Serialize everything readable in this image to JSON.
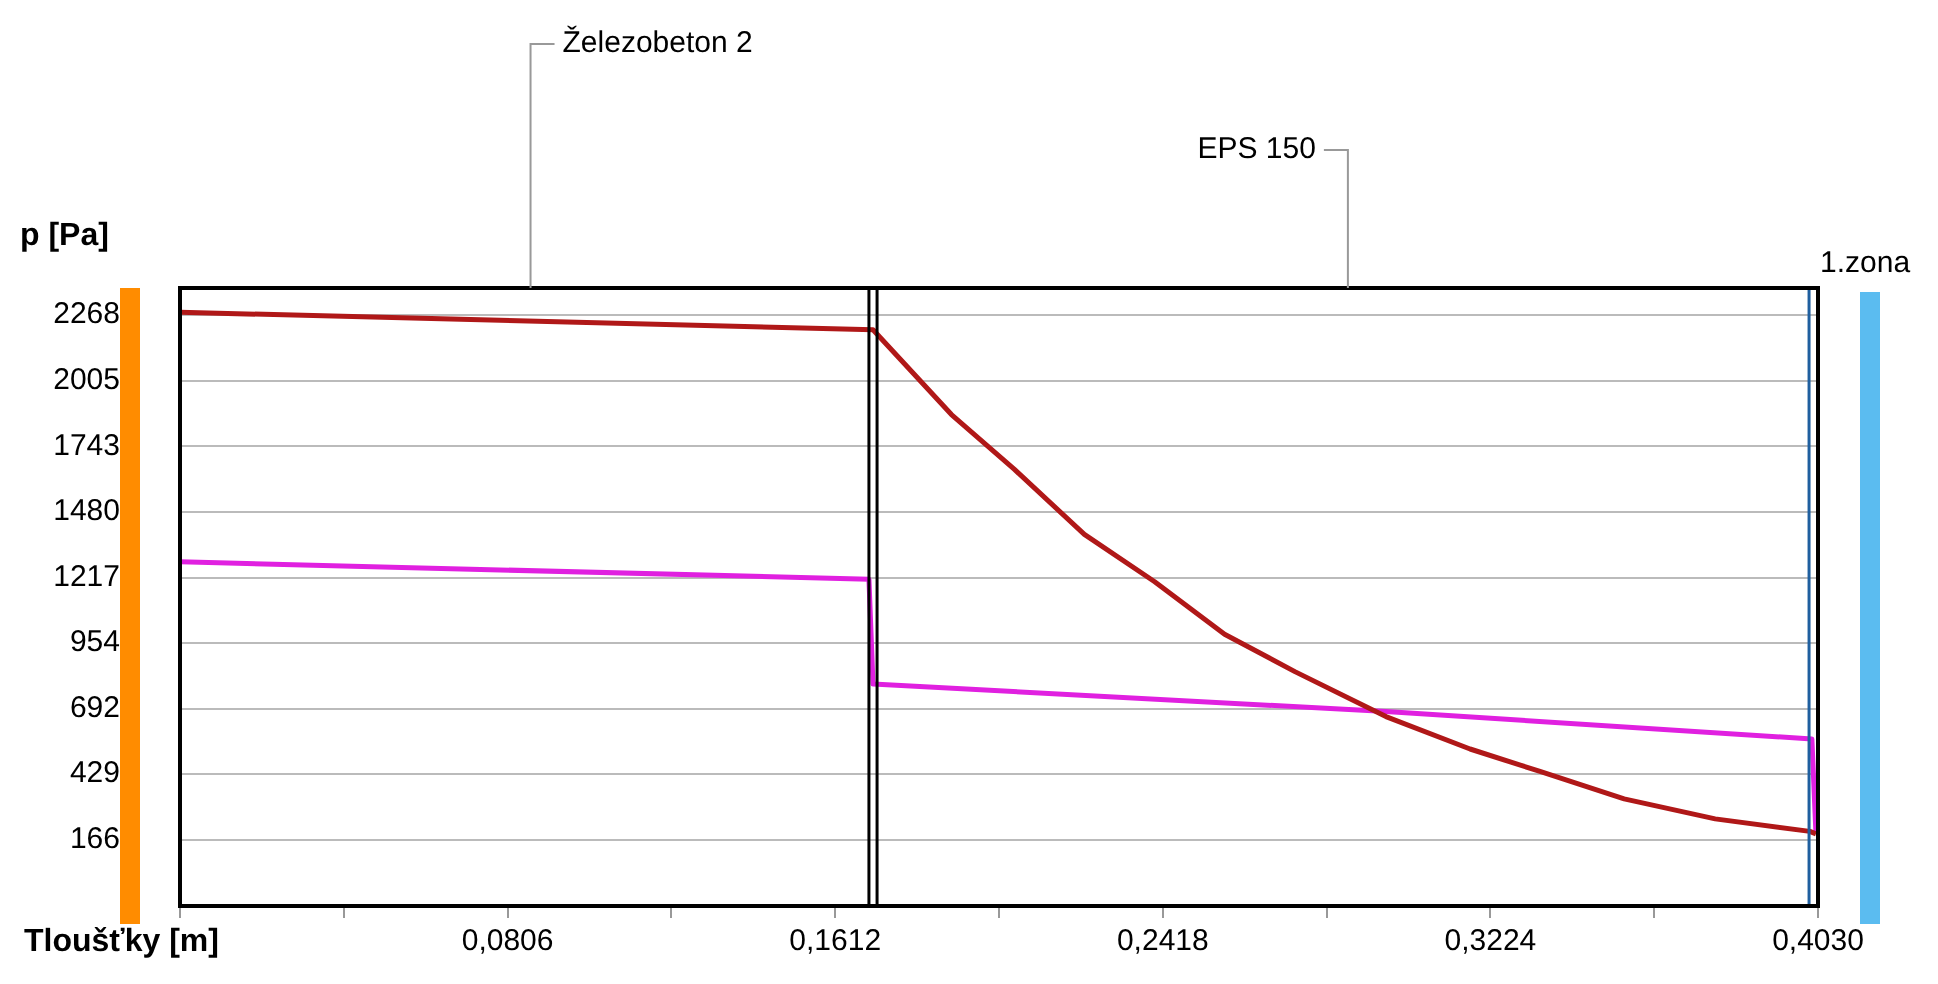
{
  "chart_data": {
    "type": "line",
    "xlabel": "Tloušťky [m]",
    "ylabel": "p [Pa]",
    "xlim": [
      0,
      0.403
    ],
    "ylim": [
      -99,
      2377
    ],
    "xticks": [
      {
        "value": 0,
        "label": null
      },
      {
        "value": 0.0403,
        "label": null
      },
      {
        "value": 0.0806,
        "label": "0,0806"
      },
      {
        "value": 0.1209,
        "label": null
      },
      {
        "value": 0.1612,
        "label": "0,1612"
      },
      {
        "value": 0.2015,
        "label": null
      },
      {
        "value": 0.2418,
        "label": "0,2418"
      },
      {
        "value": 0.2821,
        "label": null
      },
      {
        "value": 0.3224,
        "label": "0,3224"
      },
      {
        "value": 0.3627,
        "label": null
      },
      {
        "value": 0.403,
        "label": "0,4030"
      }
    ],
    "yticks": [
      166,
      429,
      692,
      954,
      1217,
      1480,
      1743,
      2005,
      2268
    ],
    "grid": "y",
    "legend": false,
    "marker": "none",
    "line_style": "solid",
    "series": [
      {
        "color": "#b01818",
        "x": [
          0,
          0.1705,
          0.1898,
          0.2053,
          0.2225,
          0.2398,
          0.257,
          0.2743,
          0.2967,
          0.3174,
          0.3346,
          0.3553,
          0.3777,
          0.401,
          0.4025
        ],
        "values": [
          2280,
          2210,
          1870,
          1650,
          1390,
          1200,
          990,
          840,
          660,
          530,
          440,
          330,
          250,
          200,
          190
        ]
      },
      {
        "color": "#e020e0",
        "x": [
          0,
          0.1695,
          0.1705,
          0.2967,
          0.4015,
          0.4025
        ],
        "values": [
          1280,
          1210,
          790,
          680,
          570,
          190
        ]
      }
    ],
    "ref_lines": [
      {
        "axis": "x",
        "value": 0.1695,
        "color": "#000000"
      },
      {
        "axis": "x",
        "value": 0.1715,
        "color": "#000000"
      },
      {
        "axis": "x",
        "value": 0.4008,
        "color": "#1f5f9f"
      }
    ],
    "annotations": [
      "Železobeton 2",
      "EPS 150",
      "1.zona"
    ]
  }
}
